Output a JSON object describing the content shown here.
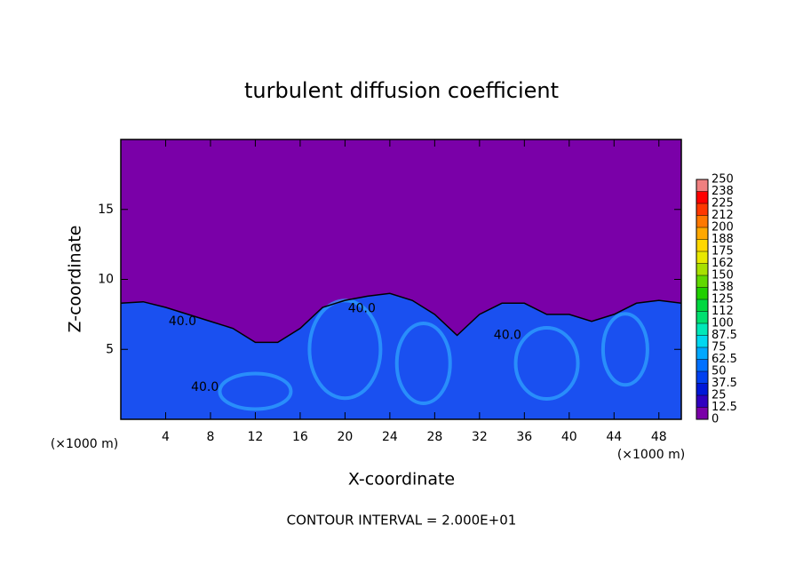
{
  "chart_data": {
    "type": "contour",
    "title": "turbulent diffusion coefficient",
    "xlabel": "X-coordinate",
    "ylabel": "Z-coordinate",
    "x_unit_left": "(×1000 m)",
    "x_unit_right": "(×1000 m)",
    "footnote": "CONTOUR INTERVAL = 2.000E+01",
    "xlim": [
      0,
      50
    ],
    "ylim": [
      0,
      20
    ],
    "xticks": [
      4,
      8,
      12,
      16,
      20,
      24,
      28,
      32,
      36,
      40,
      44,
      48
    ],
    "yticks": [
      5,
      10,
      15
    ],
    "background_color": "#7a00a8",
    "field_color": "#1a50f0",
    "surface_x": [
      0,
      2,
      4,
      6,
      8,
      10,
      12,
      14,
      16,
      18,
      20,
      22,
      24,
      26,
      28,
      30,
      32,
      34,
      36,
      38,
      40,
      42,
      44,
      46,
      48,
      50
    ],
    "surface_z": [
      8.3,
      8.4,
      8.0,
      7.5,
      7.0,
      6.5,
      5.5,
      5.5,
      6.5,
      8.0,
      8.5,
      8.8,
      9.0,
      8.5,
      7.5,
      6.0,
      7.5,
      8.3,
      8.3,
      7.5,
      7.5,
      7.0,
      7.5,
      8.3,
      8.5,
      8.3
    ],
    "contour_labels": [
      {
        "label": "40.0",
        "x": 5.5,
        "z": 7.0
      },
      {
        "label": "40.0",
        "x": 7.5,
        "z": 2.3
      },
      {
        "label": "40.0",
        "x": 21.5,
        "z": 7.9
      },
      {
        "label": "40.0",
        "x": 34.5,
        "z": 6.0
      }
    ],
    "colorbar_lim": [
      0,
      250
    ],
    "colorbar_ticks": [
      0,
      12.5,
      25,
      37.5,
      50,
      62.5,
      75,
      87.5,
      100,
      {
        "value": 112.5,
        "label": "112"
      },
      125,
      {
        "value": 137.5,
        "label": "138"
      },
      150,
      {
        "value": 162.5,
        "label": "162"
      },
      175,
      {
        "value": 187.5,
        "label": "188"
      },
      200,
      {
        "value": 212.5,
        "label": "212"
      },
      225,
      {
        "value": 237.5,
        "label": "238"
      },
      250
    ],
    "colorbar_colors": [
      "#7a00a8",
      "#3000c0",
      "#0018d8",
      "#0040f0",
      "#0070ff",
      "#00a8ff",
      "#00d8f0",
      "#00e8b8",
      "#00e070",
      "#00d840",
      "#20d000",
      "#60d800",
      "#a8e000",
      "#e8e800",
      "#ffd800",
      "#ffa800",
      "#ff7800",
      "#ff3800",
      "#ff0000",
      "#f08080"
    ]
  }
}
